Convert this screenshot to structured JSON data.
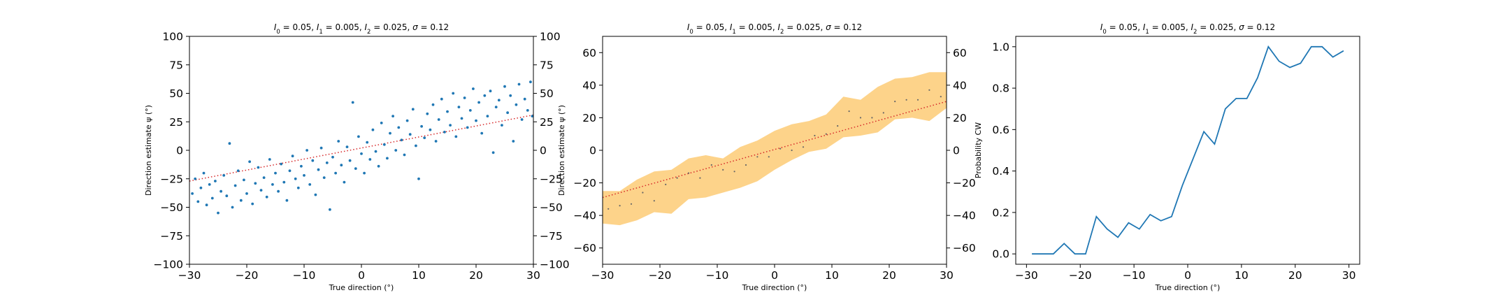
{
  "colors": {
    "scatter": "#1f77b4",
    "line": "#1f77b4",
    "band": "#fdd38a",
    "mean_points": "#666666",
    "reference": "#d62728"
  },
  "chart_data": [
    {
      "type": "scatter",
      "title": "I_0 = 0.05, I_1 = 0.005, I_2 = 0.025, σ = 0.12",
      "title_parts": [
        "I",
        "0",
        " = 0.05, ",
        "I",
        "1",
        " = 0.005, ",
        "I",
        "2",
        " = 0.025, ",
        "σ",
        " = 0.12"
      ],
      "xlabel": "True direction (°)",
      "ylabel": "Direction estimate ψ (°)",
      "xlim": [
        -30,
        30
      ],
      "ylim": [
        -100,
        100
      ],
      "xticks": [
        -30,
        -20,
        -10,
        0,
        10,
        20,
        30
      ],
      "yticks": [
        -100,
        -75,
        -50,
        -25,
        0,
        25,
        50,
        75,
        100
      ],
      "right_yticks": [
        -100,
        -75,
        -50,
        -25,
        0,
        25,
        50,
        75,
        100
      ],
      "reference_line": {
        "x": [
          -30,
          30
        ],
        "y": [
          -27,
          31
        ]
      },
      "series": [
        {
          "points": [
            [
              -29.5,
              -38
            ],
            [
              -29,
              -25
            ],
            [
              -28.5,
              -45
            ],
            [
              -28,
              -33
            ],
            [
              -27.5,
              -20
            ],
            [
              -27,
              -48
            ],
            [
              -26.5,
              -30
            ],
            [
              -26,
              -42
            ],
            [
              -25.5,
              -27
            ],
            [
              -25,
              -55
            ],
            [
              -24.5,
              -36
            ],
            [
              -24,
              -22
            ],
            [
              -23.5,
              -40
            ],
            [
              -23,
              6
            ],
            [
              -22.5,
              -50
            ],
            [
              -22,
              -31
            ],
            [
              -21.5,
              -18
            ],
            [
              -21,
              -44
            ],
            [
              -20.5,
              -26
            ],
            [
              -20,
              -38
            ],
            [
              -19.5,
              -10
            ],
            [
              -19,
              -47
            ],
            [
              -18.5,
              -29
            ],
            [
              -18,
              -15
            ],
            [
              -17.5,
              -35
            ],
            [
              -17,
              -24
            ],
            [
              -16.5,
              -41
            ],
            [
              -16,
              -8
            ],
            [
              -15.5,
              -30
            ],
            [
              -15,
              -20
            ],
            [
              -14.5,
              -36
            ],
            [
              -14,
              -12
            ],
            [
              -13.5,
              -28
            ],
            [
              -13,
              -44
            ],
            [
              -12.5,
              -18
            ],
            [
              -12,
              -5
            ],
            [
              -11.5,
              -25
            ],
            [
              -11,
              -33
            ],
            [
              -10.5,
              -14
            ],
            [
              -10,
              -22
            ],
            [
              -9.5,
              0
            ],
            [
              -9,
              -30
            ],
            [
              -8.5,
              -9
            ],
            [
              -8,
              -39
            ],
            [
              -7.5,
              -17
            ],
            [
              -7,
              2
            ],
            [
              -6.5,
              -24
            ],
            [
              -6,
              -11
            ],
            [
              -5.5,
              -52
            ],
            [
              -5,
              -6
            ],
            [
              -4.5,
              -20
            ],
            [
              -4,
              8
            ],
            [
              -3.5,
              -13
            ],
            [
              -3,
              -28
            ],
            [
              -2.5,
              3
            ],
            [
              -2,
              -9
            ],
            [
              -1.5,
              42
            ],
            [
              -1,
              -16
            ],
            [
              -0.5,
              12
            ],
            [
              0,
              -3
            ],
            [
              0.5,
              -20
            ],
            [
              1,
              7
            ],
            [
              1.5,
              -8
            ],
            [
              2,
              18
            ],
            [
              2.5,
              -1
            ],
            [
              3,
              -14
            ],
            [
              3.5,
              24
            ],
            [
              4,
              5
            ],
            [
              4.5,
              -7
            ],
            [
              5,
              15
            ],
            [
              5.5,
              30
            ],
            [
              6,
              0
            ],
            [
              6.5,
              20
            ],
            [
              7,
              9
            ],
            [
              7.5,
              -4
            ],
            [
              8,
              26
            ],
            [
              8.5,
              14
            ],
            [
              9,
              36
            ],
            [
              9.5,
              4
            ],
            [
              10,
              -25
            ],
            [
              10.5,
              21
            ],
            [
              11,
              11
            ],
            [
              11.5,
              32
            ],
            [
              12,
              18
            ],
            [
              12.5,
              40
            ],
            [
              13,
              8
            ],
            [
              13.5,
              27
            ],
            [
              14,
              45
            ],
            [
              14.5,
              16
            ],
            [
              15,
              34
            ],
            [
              15.5,
              22
            ],
            [
              16,
              50
            ],
            [
              16.5,
              12
            ],
            [
              17,
              38
            ],
            [
              17.5,
              28
            ],
            [
              18,
              46
            ],
            [
              18.5,
              20
            ],
            [
              19,
              35
            ],
            [
              19.5,
              54
            ],
            [
              20,
              26
            ],
            [
              20.5,
              42
            ],
            [
              21,
              15
            ],
            [
              21.5,
              48
            ],
            [
              22,
              30
            ],
            [
              22.5,
              52
            ],
            [
              23,
              -2
            ],
            [
              23.5,
              38
            ],
            [
              24,
              44
            ],
            [
              24.5,
              22
            ],
            [
              25,
              56
            ],
            [
              25.5,
              33
            ],
            [
              26,
              48
            ],
            [
              26.5,
              8
            ],
            [
              27,
              40
            ],
            [
              27.5,
              58
            ],
            [
              28,
              27
            ],
            [
              28.5,
              45
            ],
            [
              29,
              35
            ],
            [
              29.5,
              60
            ],
            [
              29.8,
              30
            ]
          ]
        }
      ]
    },
    {
      "type": "line",
      "title": "I_0 = 0.05, I_1 = 0.005, I_2 = 0.025, σ = 0.12",
      "title_parts": [
        "I",
        "0",
        " = 0.05, ",
        "I",
        "1",
        " = 0.005, ",
        "I",
        "2",
        " = 0.025, ",
        "σ",
        " = 0.12"
      ],
      "xlabel": "True direction (°)",
      "ylabel": "Direction estimate ψ (°)",
      "xlim": [
        -30,
        30
      ],
      "ylim": [
        -70,
        70
      ],
      "xticks": [
        -30,
        -20,
        -10,
        0,
        10,
        20,
        30
      ],
      "yticks": [
        -60,
        -40,
        -20,
        0,
        20,
        40,
        60
      ],
      "right_yticks": [
        -60,
        -40,
        -20,
        0,
        20,
        40,
        60
      ],
      "reference_line": {
        "x": [
          -30,
          30
        ],
        "y": [
          -29,
          30
        ]
      },
      "band": {
        "x": [
          -30,
          -27,
          -24,
          -21,
          -18,
          -15,
          -12,
          -9,
          -6,
          -3,
          0,
          3,
          6,
          9,
          12,
          15,
          18,
          21,
          24,
          27,
          30
        ],
        "lower": [
          -45,
          -46,
          -43,
          -38,
          -39,
          -30,
          -29,
          -26,
          -23,
          -19,
          -12,
          -6,
          -1,
          1,
          8,
          9,
          11,
          19,
          20,
          18,
          26
        ],
        "upper": [
          -25,
          -25,
          -18,
          -13,
          -12,
          -5,
          -3,
          -5,
          2,
          6,
          12,
          16,
          18,
          22,
          33,
          31,
          39,
          44,
          45,
          48,
          48
        ]
      },
      "series": [
        {
          "name": "",
          "x": [
            -29,
            -27,
            -25,
            -23,
            -21,
            -19,
            -17,
            -15,
            -13,
            -11,
            -9,
            -7,
            -5,
            -3,
            -1,
            1,
            3,
            5,
            7,
            9,
            11,
            13,
            15,
            17,
            19,
            21,
            23,
            25,
            27,
            29
          ],
          "y": [
            -36,
            -34,
            -33,
            -26,
            -31,
            -21,
            -17,
            -14,
            -17,
            -9,
            -12,
            -13,
            -9,
            -4,
            -4,
            1,
            0,
            2,
            9,
            10,
            15,
            24,
            20,
            20,
            23,
            30,
            31,
            31,
            37,
            33
          ]
        }
      ]
    },
    {
      "type": "line",
      "title": "I_0 = 0.05, I_1 = 0.005, I_2 = 0.025, σ = 0.12",
      "title_parts": [
        "I",
        "0",
        " = 0.05, ",
        "I",
        "1",
        " = 0.005, ",
        "I",
        "2",
        " = 0.025, ",
        "σ",
        " = 0.12"
      ],
      "xlabel": "True direction (°)",
      "ylabel": "Probability CW",
      "xlim": [
        -32,
        32
      ],
      "ylim": [
        -0.05,
        1.05
      ],
      "xticks": [
        -30,
        -20,
        -10,
        0,
        10,
        20,
        30
      ],
      "yticks": [
        0.0,
        0.2,
        0.4,
        0.6,
        0.8,
        1.0
      ],
      "series": [
        {
          "name": "",
          "x": [
            -29,
            -27,
            -25,
            -23,
            -21,
            -19,
            -17,
            -15,
            -13,
            -11,
            -9,
            -7,
            -5,
            -3,
            -1,
            1,
            3,
            5,
            7,
            9,
            11,
            13,
            15,
            17,
            19,
            21,
            23,
            25,
            27,
            29
          ],
          "y": [
            0.0,
            0.0,
            0.0,
            0.05,
            0.0,
            0.0,
            0.18,
            0.12,
            0.08,
            0.15,
            0.12,
            0.19,
            0.16,
            0.18,
            0.33,
            0.46,
            0.59,
            0.53,
            0.7,
            0.75,
            0.75,
            0.85,
            1.0,
            0.93,
            0.9,
            0.92,
            1.0,
            1.0,
            0.95,
            0.98
          ]
        }
      ]
    }
  ]
}
